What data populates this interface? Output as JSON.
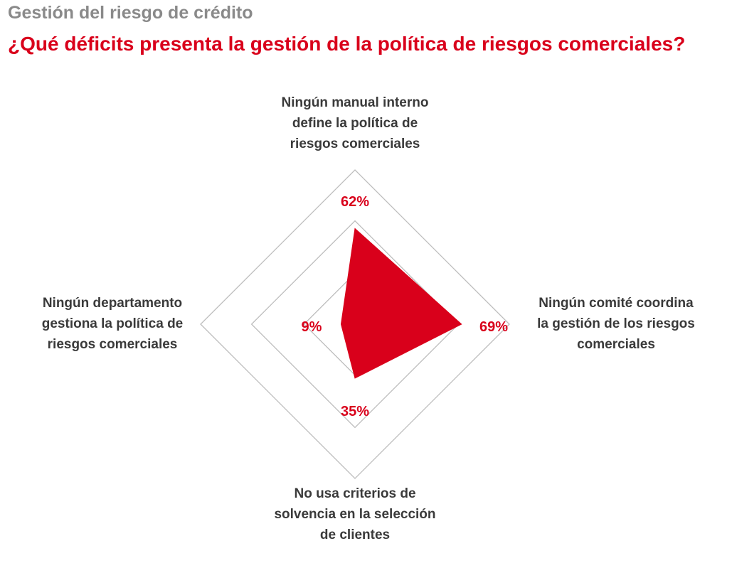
{
  "header": {
    "title": "Gestión del riesgo de crédito",
    "subtitle": "¿Qué déficits presenta la gestión de la política de riesgos comerciales?"
  },
  "colors": {
    "accent": "#d9001b",
    "grid": "#bdbdbd",
    "label": "#3a3a3a",
    "title": "#8a8a8a"
  },
  "chart_data": {
    "type": "radar",
    "grid": true,
    "axes": [
      {
        "label_lines": [
          "Ningún manual interno",
          "define la política de",
          "riesgos comerciales"
        ],
        "value": 62,
        "value_label": "62%"
      },
      {
        "label_lines": [
          "Ningún comité coordina",
          "la gestión de los riesgos",
          "comerciales"
        ],
        "value": 69,
        "value_label": "69%"
      },
      {
        "label_lines": [
          "No usa criterios de",
          "solvencia en la selección",
          "de clientes"
        ],
        "value": 35,
        "value_label": "35%"
      },
      {
        "label_lines": [
          "Ningún departamento",
          "gestiona la política de",
          "riesgos comerciales"
        ],
        "value": 9,
        "value_label": "9%"
      }
    ],
    "rings": [
      33,
      67,
      100
    ],
    "range": [
      0,
      100
    ]
  }
}
